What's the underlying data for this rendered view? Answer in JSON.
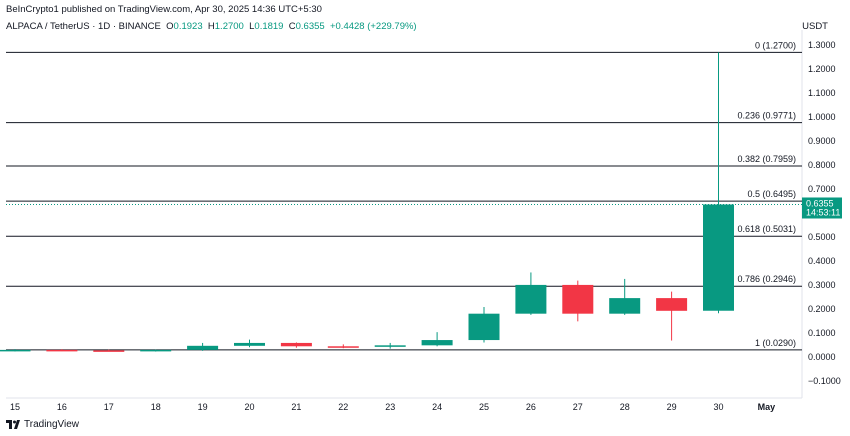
{
  "header": {
    "publisher": "BeInCrypto1 published on TradingView.com, Apr 30, 2025 14:36 UTC+5:30",
    "symbol": "ALPACA / TetherUS · 1D · BINANCE",
    "o_label": "O",
    "o_value": "0.1923",
    "h_label": "H",
    "h_value": "1.2700",
    "l_label": "L",
    "l_value": "0.1819",
    "c_label": "C",
    "c_value": "0.6355",
    "change": "+0.4428 (+229.79%)",
    "currency": "USDT"
  },
  "footer": {
    "brand": "TradingView"
  },
  "colors": {
    "up": "#089981",
    "down": "#f23645",
    "fib_line": "#131722",
    "price_badge": "#089981"
  },
  "chart_data": {
    "type": "candlestick",
    "x": [
      "15",
      "16",
      "17",
      "18",
      "19",
      "20",
      "21",
      "22",
      "23",
      "24",
      "25",
      "26",
      "27",
      "28",
      "29",
      "30"
    ],
    "x_extra_label": "May",
    "ohlc": [
      {
        "o": 0.027,
        "h": 0.032,
        "l": 0.022,
        "c": 0.029
      },
      {
        "o": 0.029,
        "h": 0.032,
        "l": 0.024,
        "c": 0.027
      },
      {
        "o": 0.027,
        "h": 0.03,
        "l": 0.023,
        "c": 0.026
      },
      {
        "o": 0.026,
        "h": 0.03,
        "l": 0.022,
        "c": 0.029
      },
      {
        "o": 0.029,
        "h": 0.058,
        "l": 0.025,
        "c": 0.046
      },
      {
        "o": 0.046,
        "h": 0.072,
        "l": 0.04,
        "c": 0.058
      },
      {
        "o": 0.058,
        "h": 0.06,
        "l": 0.038,
        "c": 0.044
      },
      {
        "o": 0.044,
        "h": 0.052,
        "l": 0.036,
        "c": 0.042
      },
      {
        "o": 0.042,
        "h": 0.058,
        "l": 0.034,
        "c": 0.048
      },
      {
        "o": 0.048,
        "h": 0.103,
        "l": 0.044,
        "c": 0.07
      },
      {
        "o": 0.07,
        "h": 0.208,
        "l": 0.06,
        "c": 0.18
      },
      {
        "o": 0.18,
        "h": 0.352,
        "l": 0.175,
        "c": 0.3
      },
      {
        "o": 0.3,
        "h": 0.318,
        "l": 0.148,
        "c": 0.18
      },
      {
        "o": 0.18,
        "h": 0.325,
        "l": 0.175,
        "c": 0.245
      },
      {
        "o": 0.245,
        "h": 0.272,
        "l": 0.068,
        "c": 0.192
      },
      {
        "o": 0.1923,
        "h": 1.27,
        "l": 0.1819,
        "c": 0.6355
      }
    ],
    "fib_levels": [
      {
        "label": "0 (1.2700)",
        "value": 1.27
      },
      {
        "label": "0.236 (0.9771)",
        "value": 0.9771
      },
      {
        "label": "0.382 (0.7959)",
        "value": 0.7959
      },
      {
        "label": "0.5 (0.6495)",
        "value": 0.6495
      },
      {
        "label": "0.618 (0.5031)",
        "value": 0.5031
      },
      {
        "label": "0.786 (0.2946)",
        "value": 0.2946
      },
      {
        "label": "1 (0.0290)",
        "value": 0.029
      }
    ],
    "y_ticks": [
      "1.3000",
      "1.2000",
      "1.1000",
      "1.0000",
      "0.9000",
      "0.8000",
      "0.7000",
      "0.6000",
      "0.5000",
      "0.4000",
      "0.3000",
      "0.2000",
      "0.1000",
      "0.0000",
      "−0.1000"
    ],
    "y_tick_values": [
      1.3,
      1.2,
      1.1,
      1.0,
      0.9,
      0.8,
      0.7,
      0.6,
      0.5,
      0.4,
      0.3,
      0.2,
      0.1,
      0.0,
      -0.1
    ],
    "ylim": [
      -0.13,
      1.33
    ],
    "last_price": "0.6355",
    "last_price_value": 0.6355,
    "countdown": "14:53:11"
  }
}
